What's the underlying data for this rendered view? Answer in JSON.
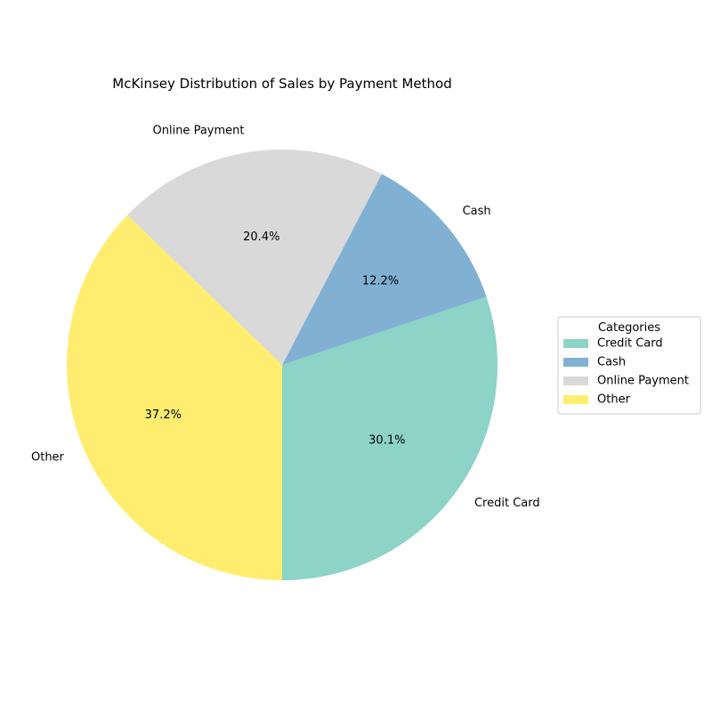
{
  "chart_data": {
    "type": "pie",
    "title": "McKinsey Distribution of Sales by Payment Method",
    "categories": [
      "Credit Card",
      "Cash",
      "Online Payment",
      "Other"
    ],
    "values": [
      30.1,
      12.2,
      20.4,
      37.2
    ],
    "percent_labels": [
      "30.1%",
      "12.2%",
      "20.4%",
      "37.2%"
    ],
    "colors": [
      "#8dd3c7",
      "#80b1d3",
      "#d9d9d9",
      "#ffed6f"
    ],
    "start_angle_deg": -90,
    "direction": "counterclockwise",
    "legend": {
      "title": "Categories",
      "placement": "center-right"
    }
  }
}
